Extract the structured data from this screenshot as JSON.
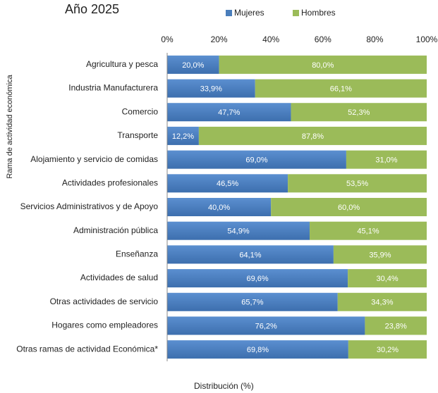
{
  "chart_data": {
    "type": "stacked_barh",
    "title": "Año 2025",
    "ylabel": "Rama  de actividad económica",
    "xlabel": "Distribución (%)",
    "categories": [
      "Agricultura y pesca",
      "Industria Manufacturera",
      "Comercio",
      "Transporte",
      "Alojamiento y servicio de comidas",
      "Actividades profesionales",
      "Servicios Administrativos y de Apoyo",
      "Administración pública",
      "Enseñanza",
      "Actividades de salud",
      "Otras actividades de servicio",
      "Hogares como empleadores",
      "Otras ramas de actividad Económica*"
    ],
    "series": [
      {
        "name": "Mujeres",
        "color": "#4a7ebb",
        "values": [
          20.0,
          33.9,
          47.7,
          12.2,
          69.0,
          46.5,
          40.0,
          54.9,
          64.1,
          69.6,
          65.7,
          76.2,
          69.8
        ],
        "value_labels": [
          "20,0%",
          "33,9%",
          "47,7%",
          "12,2%",
          "69,0%",
          "46,5%",
          "40,0%",
          "54,9%",
          "64,1%",
          "69,6%",
          "65,7%",
          "76,2%",
          "69,8%"
        ]
      },
      {
        "name": "Hombres",
        "color": "#9bbb59",
        "values": [
          80.0,
          66.1,
          52.3,
          87.8,
          31.0,
          53.5,
          60.0,
          45.1,
          35.9,
          30.4,
          34.3,
          23.8,
          30.2
        ],
        "value_labels": [
          "80,0%",
          "66,1%",
          "52,3%",
          "87,8%",
          "31,0%",
          "53,5%",
          "60,0%",
          "45,1%",
          "35,9%",
          "30,4%",
          "34,3%",
          "23,8%",
          "30,2%"
        ]
      }
    ],
    "xlim": [
      0,
      100
    ],
    "xticks": [
      {
        "value": 0,
        "label": "0%"
      },
      {
        "value": 20,
        "label": "20%"
      },
      {
        "value": 40,
        "label": "40%"
      },
      {
        "value": 60,
        "label": "60%"
      },
      {
        "value": 80,
        "label": "80%"
      },
      {
        "value": 100,
        "label": "100%"
      }
    ],
    "grid": false,
    "legend": "top"
  }
}
